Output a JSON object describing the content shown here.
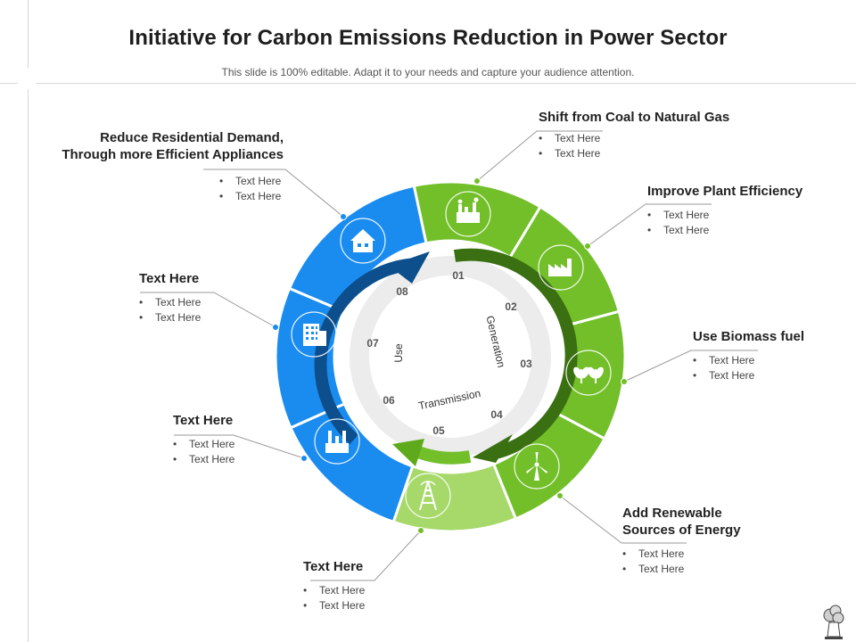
{
  "title": "Initiative for Carbon Emissions Reduction in Power Sector",
  "subtitle": "This slide is 100% editable. Adapt it to your needs and capture your audience attention.",
  "colors": {
    "green_dark": "#5eaa1c",
    "green": "#72bf2a",
    "green_light": "#a6d96a",
    "blue": "#1a8cf0",
    "blue_dark": "#0c4f8c",
    "arrow_green": "#3a6f12",
    "inner_ring": "#ececec"
  },
  "ring": {
    "numbers": [
      "01",
      "02",
      "03",
      "04",
      "05",
      "06",
      "07",
      "08"
    ],
    "stages": [
      "Generation",
      "Transmission",
      "Use"
    ]
  },
  "segments": [
    {
      "icon": "factory-icon"
    },
    {
      "icon": "factory-roof-icon"
    },
    {
      "icon": "biomass-plant-icon"
    },
    {
      "icon": "wind-turbine-icon"
    },
    {
      "icon": "transmission-tower-icon"
    },
    {
      "icon": "industrial-plant-icon"
    },
    {
      "icon": "office-building-icon"
    },
    {
      "icon": "house-icon"
    }
  ],
  "blocks": {
    "coal_gas": {
      "heading": "Shift from Coal to Natural Gas",
      "items": [
        "Text Here",
        "Text Here"
      ]
    },
    "plant_eff": {
      "heading": "Improve Plant Efficiency",
      "items": [
        "Text Here",
        "Text Here"
      ]
    },
    "biomass": {
      "heading": "Use Biomass fuel",
      "items": [
        "Text Here",
        "Text Here"
      ]
    },
    "renewable": {
      "heading_line1": "Add Renewable",
      "heading_line2": "Sources of Energy",
      "items": [
        "Text Here",
        "Text Here"
      ]
    },
    "bottom": {
      "heading": "Text Here",
      "items": [
        "Text Here",
        "Text Here"
      ]
    },
    "left_low": {
      "heading": "Text Here",
      "items": [
        "Text Here",
        "Text Here"
      ]
    },
    "left_mid": {
      "heading": "Text Here",
      "items": [
        "Text Here",
        "Text Here"
      ]
    },
    "residential": {
      "heading_line1": "Reduce Residential Demand,",
      "heading_line2": "Through more Efficient Appliances",
      "items": [
        "Text Here",
        "Text Here"
      ]
    }
  }
}
